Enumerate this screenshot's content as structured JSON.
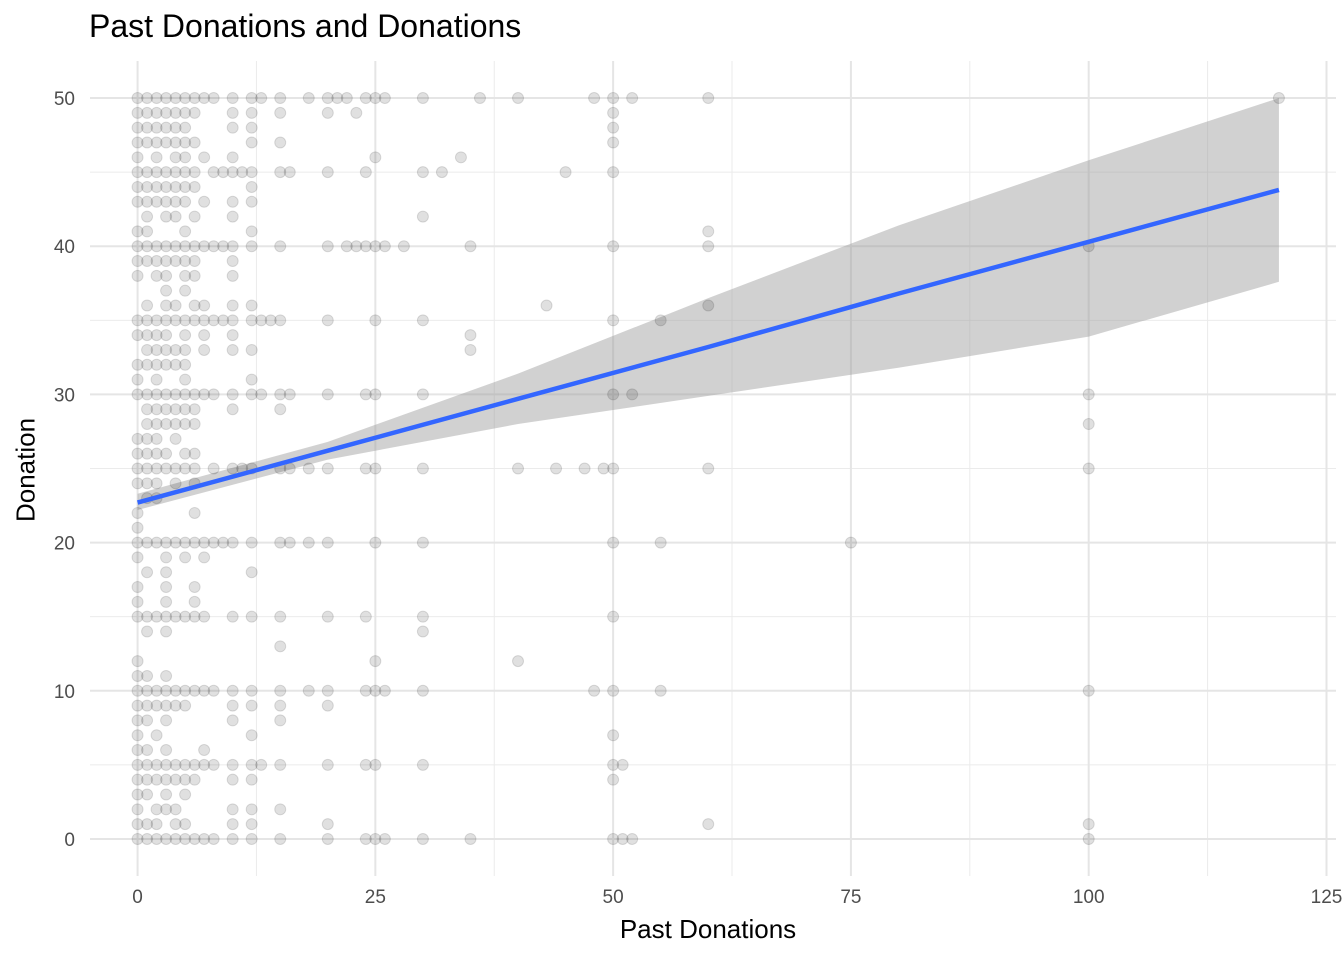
{
  "chart_data": {
    "type": "scatter",
    "title": "Past Donations and Donations",
    "xlabel": "Past Donations",
    "ylabel": "Donation",
    "xlim": [
      -5,
      126
    ],
    "ylim": [
      -2.5,
      52.5
    ],
    "x_ticks": [
      0,
      25,
      50,
      75,
      100,
      125
    ],
    "y_ticks": [
      0,
      10,
      20,
      30,
      40,
      50
    ],
    "grid": true,
    "point_color": "#000000",
    "point_alpha": 0.12,
    "points": [
      [
        0,
        50
      ],
      [
        1,
        50
      ],
      [
        2,
        50
      ],
      [
        3,
        50
      ],
      [
        4,
        50
      ],
      [
        5,
        50
      ],
      [
        6,
        50
      ],
      [
        7,
        50
      ],
      [
        8,
        50
      ],
      [
        10,
        50
      ],
      [
        12,
        50
      ],
      [
        13,
        50
      ],
      [
        15,
        50
      ],
      [
        18,
        50
      ],
      [
        20,
        50
      ],
      [
        21,
        50
      ],
      [
        22,
        50
      ],
      [
        24,
        50
      ],
      [
        25,
        50
      ],
      [
        26,
        50
      ],
      [
        30,
        50
      ],
      [
        36,
        50
      ],
      [
        40,
        50
      ],
      [
        48,
        50
      ],
      [
        50,
        50
      ],
      [
        52,
        50
      ],
      [
        60,
        50
      ],
      [
        120,
        50
      ],
      [
        0,
        49
      ],
      [
        1,
        49
      ],
      [
        2,
        49
      ],
      [
        3,
        49
      ],
      [
        4,
        49
      ],
      [
        5,
        49
      ],
      [
        6,
        49
      ],
      [
        10,
        49
      ],
      [
        12,
        49
      ],
      [
        15,
        49
      ],
      [
        20,
        49
      ],
      [
        23,
        49
      ],
      [
        50,
        49
      ],
      [
        0,
        48
      ],
      [
        1,
        48
      ],
      [
        2,
        48
      ],
      [
        3,
        48
      ],
      [
        4,
        48
      ],
      [
        5,
        48
      ],
      [
        10,
        48
      ],
      [
        12,
        48
      ],
      [
        50,
        48
      ],
      [
        0,
        47
      ],
      [
        1,
        47
      ],
      [
        2,
        47
      ],
      [
        3,
        47
      ],
      [
        4,
        47
      ],
      [
        5,
        47
      ],
      [
        6,
        47
      ],
      [
        12,
        47
      ],
      [
        15,
        47
      ],
      [
        50,
        47
      ],
      [
        0,
        46
      ],
      [
        2,
        46
      ],
      [
        4,
        46
      ],
      [
        5,
        46
      ],
      [
        7,
        46
      ],
      [
        10,
        46
      ],
      [
        25,
        46
      ],
      [
        34,
        46
      ],
      [
        0,
        45
      ],
      [
        1,
        45
      ],
      [
        2,
        45
      ],
      [
        3,
        45
      ],
      [
        4,
        45
      ],
      [
        5,
        45
      ],
      [
        6,
        45
      ],
      [
        8,
        45
      ],
      [
        9,
        45
      ],
      [
        10,
        45
      ],
      [
        11,
        45
      ],
      [
        12,
        45
      ],
      [
        15,
        45
      ],
      [
        16,
        45
      ],
      [
        20,
        45
      ],
      [
        24,
        45
      ],
      [
        30,
        45
      ],
      [
        32,
        45
      ],
      [
        45,
        45
      ],
      [
        50,
        45
      ],
      [
        0,
        44
      ],
      [
        1,
        44
      ],
      [
        2,
        44
      ],
      [
        3,
        44
      ],
      [
        4,
        44
      ],
      [
        5,
        44
      ],
      [
        6,
        44
      ],
      [
        12,
        44
      ],
      [
        0,
        43
      ],
      [
        1,
        43
      ],
      [
        2,
        43
      ],
      [
        3,
        43
      ],
      [
        4,
        43
      ],
      [
        5,
        43
      ],
      [
        7,
        43
      ],
      [
        10,
        43
      ],
      [
        12,
        43
      ],
      [
        1,
        42
      ],
      [
        3,
        42
      ],
      [
        4,
        42
      ],
      [
        6,
        42
      ],
      [
        10,
        42
      ],
      [
        30,
        42
      ],
      [
        0,
        41
      ],
      [
        1,
        41
      ],
      [
        5,
        41
      ],
      [
        12,
        41
      ],
      [
        60,
        41
      ],
      [
        0,
        40
      ],
      [
        1,
        40
      ],
      [
        2,
        40
      ],
      [
        3,
        40
      ],
      [
        4,
        40
      ],
      [
        5,
        40
      ],
      [
        6,
        40
      ],
      [
        7,
        40
      ],
      [
        8,
        40
      ],
      [
        9,
        40
      ],
      [
        10,
        40
      ],
      [
        12,
        40
      ],
      [
        15,
        40
      ],
      [
        20,
        40
      ],
      [
        22,
        40
      ],
      [
        23,
        40
      ],
      [
        24,
        40
      ],
      [
        25,
        40
      ],
      [
        26,
        40
      ],
      [
        28,
        40
      ],
      [
        35,
        40
      ],
      [
        50,
        40
      ],
      [
        60,
        40
      ],
      [
        100,
        40
      ],
      [
        0,
        39
      ],
      [
        1,
        39
      ],
      [
        2,
        39
      ],
      [
        3,
        39
      ],
      [
        4,
        39
      ],
      [
        5,
        39
      ],
      [
        6,
        39
      ],
      [
        10,
        39
      ],
      [
        0,
        38
      ],
      [
        2,
        38
      ],
      [
        3,
        38
      ],
      [
        5,
        38
      ],
      [
        6,
        38
      ],
      [
        10,
        38
      ],
      [
        3,
        37
      ],
      [
        5,
        37
      ],
      [
        1,
        36
      ],
      [
        3,
        36
      ],
      [
        4,
        36
      ],
      [
        6,
        36
      ],
      [
        7,
        36
      ],
      [
        10,
        36
      ],
      [
        12,
        36
      ],
      [
        43,
        36
      ],
      [
        60,
        36
      ],
      [
        0,
        35
      ],
      [
        1,
        35
      ],
      [
        2,
        35
      ],
      [
        3,
        35
      ],
      [
        4,
        35
      ],
      [
        5,
        35
      ],
      [
        6,
        35
      ],
      [
        7,
        35
      ],
      [
        8,
        35
      ],
      [
        9,
        35
      ],
      [
        10,
        35
      ],
      [
        12,
        35
      ],
      [
        13,
        35
      ],
      [
        14,
        35
      ],
      [
        15,
        35
      ],
      [
        20,
        35
      ],
      [
        25,
        35
      ],
      [
        30,
        35
      ],
      [
        50,
        35
      ],
      [
        55,
        35
      ],
      [
        0,
        34
      ],
      [
        1,
        34
      ],
      [
        2,
        34
      ],
      [
        3,
        34
      ],
      [
        5,
        34
      ],
      [
        7,
        34
      ],
      [
        10,
        34
      ],
      [
        35,
        34
      ],
      [
        1,
        33
      ],
      [
        2,
        33
      ],
      [
        3,
        33
      ],
      [
        4,
        33
      ],
      [
        5,
        33
      ],
      [
        7,
        33
      ],
      [
        10,
        33
      ],
      [
        12,
        33
      ],
      [
        35,
        33
      ],
      [
        0,
        32
      ],
      [
        1,
        32
      ],
      [
        2,
        32
      ],
      [
        3,
        32
      ],
      [
        4,
        32
      ],
      [
        5,
        32
      ],
      [
        0,
        31
      ],
      [
        2,
        31
      ],
      [
        5,
        31
      ],
      [
        12,
        31
      ],
      [
        0,
        30
      ],
      [
        1,
        30
      ],
      [
        2,
        30
      ],
      [
        3,
        30
      ],
      [
        4,
        30
      ],
      [
        5,
        30
      ],
      [
        6,
        30
      ],
      [
        7,
        30
      ],
      [
        8,
        30
      ],
      [
        10,
        30
      ],
      [
        12,
        30
      ],
      [
        13,
        30
      ],
      [
        15,
        30
      ],
      [
        16,
        30
      ],
      [
        20,
        30
      ],
      [
        24,
        30
      ],
      [
        25,
        30
      ],
      [
        30,
        30
      ],
      [
        50,
        30
      ],
      [
        52,
        30
      ],
      [
        100,
        30
      ],
      [
        1,
        29
      ],
      [
        2,
        29
      ],
      [
        3,
        29
      ],
      [
        4,
        29
      ],
      [
        5,
        29
      ],
      [
        6,
        29
      ],
      [
        10,
        29
      ],
      [
        15,
        29
      ],
      [
        1,
        28
      ],
      [
        2,
        28
      ],
      [
        3,
        28
      ],
      [
        4,
        28
      ],
      [
        5,
        28
      ],
      [
        6,
        28
      ],
      [
        100,
        28
      ],
      [
        0,
        27
      ],
      [
        1,
        27
      ],
      [
        2,
        27
      ],
      [
        4,
        27
      ],
      [
        0,
        26
      ],
      [
        1,
        26
      ],
      [
        2,
        26
      ],
      [
        3,
        26
      ],
      [
        5,
        26
      ],
      [
        6,
        26
      ],
      [
        0,
        25
      ],
      [
        1,
        25
      ],
      [
        2,
        25
      ],
      [
        3,
        25
      ],
      [
        4,
        25
      ],
      [
        5,
        25
      ],
      [
        6,
        25
      ],
      [
        8,
        25
      ],
      [
        10,
        25
      ],
      [
        11,
        25
      ],
      [
        12,
        25
      ],
      [
        15,
        25
      ],
      [
        16,
        25
      ],
      [
        18,
        25
      ],
      [
        20,
        25
      ],
      [
        24,
        25
      ],
      [
        25,
        25
      ],
      [
        30,
        25
      ],
      [
        40,
        25
      ],
      [
        44,
        25
      ],
      [
        47,
        25
      ],
      [
        49,
        25
      ],
      [
        50,
        25
      ],
      [
        60,
        25
      ],
      [
        100,
        25
      ],
      [
        0,
        24
      ],
      [
        1,
        24
      ],
      [
        2,
        24
      ],
      [
        4,
        24
      ],
      [
        6,
        24
      ],
      [
        1,
        23
      ],
      [
        2,
        23
      ],
      [
        0,
        22
      ],
      [
        6,
        22
      ],
      [
        0,
        21
      ],
      [
        0,
        20
      ],
      [
        1,
        20
      ],
      [
        2,
        20
      ],
      [
        3,
        20
      ],
      [
        4,
        20
      ],
      [
        5,
        20
      ],
      [
        6,
        20
      ],
      [
        7,
        20
      ],
      [
        8,
        20
      ],
      [
        9,
        20
      ],
      [
        10,
        20
      ],
      [
        12,
        20
      ],
      [
        15,
        20
      ],
      [
        16,
        20
      ],
      [
        18,
        20
      ],
      [
        20,
        20
      ],
      [
        25,
        20
      ],
      [
        30,
        20
      ],
      [
        50,
        20
      ],
      [
        55,
        20
      ],
      [
        75,
        20
      ],
      [
        0,
        19
      ],
      [
        3,
        19
      ],
      [
        5,
        19
      ],
      [
        7,
        19
      ],
      [
        1,
        18
      ],
      [
        3,
        18
      ],
      [
        12,
        18
      ],
      [
        0,
        17
      ],
      [
        3,
        17
      ],
      [
        6,
        17
      ],
      [
        0,
        16
      ],
      [
        3,
        16
      ],
      [
        6,
        16
      ],
      [
        0,
        15
      ],
      [
        1,
        15
      ],
      [
        2,
        15
      ],
      [
        3,
        15
      ],
      [
        4,
        15
      ],
      [
        5,
        15
      ],
      [
        6,
        15
      ],
      [
        7,
        15
      ],
      [
        10,
        15
      ],
      [
        12,
        15
      ],
      [
        15,
        15
      ],
      [
        20,
        15
      ],
      [
        24,
        15
      ],
      [
        30,
        15
      ],
      [
        50,
        15
      ],
      [
        1,
        14
      ],
      [
        3,
        14
      ],
      [
        30,
        14
      ],
      [
        15,
        13
      ],
      [
        0,
        12
      ],
      [
        25,
        12
      ],
      [
        40,
        12
      ],
      [
        0,
        11
      ],
      [
        1,
        11
      ],
      [
        3,
        11
      ],
      [
        0,
        10
      ],
      [
        1,
        10
      ],
      [
        2,
        10
      ],
      [
        3,
        10
      ],
      [
        4,
        10
      ],
      [
        5,
        10
      ],
      [
        6,
        10
      ],
      [
        7,
        10
      ],
      [
        8,
        10
      ],
      [
        10,
        10
      ],
      [
        12,
        10
      ],
      [
        15,
        10
      ],
      [
        18,
        10
      ],
      [
        20,
        10
      ],
      [
        24,
        10
      ],
      [
        25,
        10
      ],
      [
        26,
        10
      ],
      [
        30,
        10
      ],
      [
        48,
        10
      ],
      [
        50,
        10
      ],
      [
        55,
        10
      ],
      [
        100,
        10
      ],
      [
        0,
        9
      ],
      [
        1,
        9
      ],
      [
        2,
        9
      ],
      [
        3,
        9
      ],
      [
        4,
        9
      ],
      [
        5,
        9
      ],
      [
        10,
        9
      ],
      [
        12,
        9
      ],
      [
        15,
        9
      ],
      [
        20,
        9
      ],
      [
        0,
        8
      ],
      [
        1,
        8
      ],
      [
        3,
        8
      ],
      [
        10,
        8
      ],
      [
        15,
        8
      ],
      [
        0,
        7
      ],
      [
        2,
        7
      ],
      [
        12,
        7
      ],
      [
        50,
        7
      ],
      [
        0,
        6
      ],
      [
        1,
        6
      ],
      [
        3,
        6
      ],
      [
        7,
        6
      ],
      [
        0,
        5
      ],
      [
        1,
        5
      ],
      [
        2,
        5
      ],
      [
        3,
        5
      ],
      [
        4,
        5
      ],
      [
        5,
        5
      ],
      [
        6,
        5
      ],
      [
        7,
        5
      ],
      [
        8,
        5
      ],
      [
        10,
        5
      ],
      [
        12,
        5
      ],
      [
        13,
        5
      ],
      [
        15,
        5
      ],
      [
        20,
        5
      ],
      [
        24,
        5
      ],
      [
        25,
        5
      ],
      [
        30,
        5
      ],
      [
        50,
        5
      ],
      [
        51,
        5
      ],
      [
        0,
        4
      ],
      [
        1,
        4
      ],
      [
        2,
        4
      ],
      [
        3,
        4
      ],
      [
        4,
        4
      ],
      [
        5,
        4
      ],
      [
        6,
        4
      ],
      [
        10,
        4
      ],
      [
        12,
        4
      ],
      [
        50,
        4
      ],
      [
        0,
        3
      ],
      [
        1,
        3
      ],
      [
        3,
        3
      ],
      [
        5,
        3
      ],
      [
        0,
        2
      ],
      [
        2,
        2
      ],
      [
        3,
        2
      ],
      [
        4,
        2
      ],
      [
        10,
        2
      ],
      [
        12,
        2
      ],
      [
        15,
        2
      ],
      [
        0,
        1
      ],
      [
        1,
        1
      ],
      [
        2,
        1
      ],
      [
        4,
        1
      ],
      [
        5,
        1
      ],
      [
        10,
        1
      ],
      [
        12,
        1
      ],
      [
        20,
        1
      ],
      [
        60,
        1
      ],
      [
        100,
        1
      ],
      [
        0,
        0
      ],
      [
        1,
        0
      ],
      [
        2,
        0
      ],
      [
        3,
        0
      ],
      [
        4,
        0
      ],
      [
        5,
        0
      ],
      [
        6,
        0
      ],
      [
        7,
        0
      ],
      [
        8,
        0
      ],
      [
        10,
        0
      ],
      [
        12,
        0
      ],
      [
        15,
        0
      ],
      [
        20,
        0
      ],
      [
        24,
        0
      ],
      [
        25,
        0
      ],
      [
        26,
        0
      ],
      [
        30,
        0
      ],
      [
        35,
        0
      ],
      [
        50,
        0
      ],
      [
        51,
        0
      ],
      [
        52,
        0
      ],
      [
        100,
        0
      ]
    ],
    "regression": {
      "method": "lm",
      "line_color": "#3366FF",
      "band_color": "#999999",
      "x": [
        0,
        20,
        40,
        60,
        80,
        100,
        120
      ],
      "fit": [
        22.7,
        26.2,
        29.7,
        33.2,
        36.8,
        40.3,
        43.8
      ],
      "lower": [
        22.2,
        25.6,
        28.0,
        29.9,
        31.8,
        33.9,
        37.6
      ],
      "upper": [
        23.3,
        26.8,
        31.4,
        36.5,
        41.4,
        45.8,
        50.0
      ]
    }
  }
}
